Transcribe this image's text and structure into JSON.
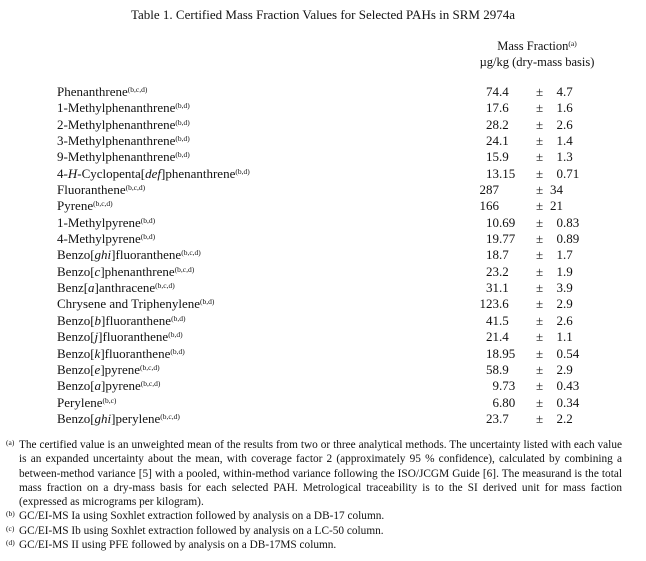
{
  "title": "Table 1.  Certified Mass Fraction Values for Selected PAHs in SRM 2974a",
  "header": {
    "line1": "Mass Fraction",
    "line1_sup": "(a)",
    "line2": "µg/kg (dry-mass basis)"
  },
  "pm_symbol": "±",
  "rows": [
    {
      "name": "Phenanthrene",
      "sup": "(b,c,d)",
      "value": "74.4",
      "unc": "4.7"
    },
    {
      "name": "1-Methylphenanthrene",
      "sup": "(b,d)",
      "value": "17.6",
      "unc": "1.6"
    },
    {
      "name": "2-Methylphenanthrene",
      "sup": "(b,d)",
      "value": "28.2",
      "unc": "2.6"
    },
    {
      "name": "3-Methylphenanthrene",
      "sup": "(b,d)",
      "value": "24.1",
      "unc": "1.4"
    },
    {
      "name": "9-Methylphenanthrene",
      "sup": "(b,d)",
      "value": "15.9",
      "unc": "1.3"
    },
    {
      "name": "4-<i>H</i>-Cyclopenta[<i>def</i>]phenanthrene",
      "sup": "(b,d)",
      "value": "13.15",
      "unc": "0.71"
    },
    {
      "name": "Fluoranthene",
      "sup": "(b,c,d)",
      "value": "287",
      "unc": "34"
    },
    {
      "name": "Pyrene",
      "sup": "(b,c,d)",
      "value": "166",
      "unc": "21"
    },
    {
      "name": "1-Methylpyrene",
      "sup": "(b,d)",
      "value": "10.69",
      "unc": "0.83"
    },
    {
      "name": "4-Methylpyrene",
      "sup": "(b,d)",
      "value": "19.77",
      "unc": "0.89"
    },
    {
      "name": "Benzo[<i>ghi</i>]fluoranthene",
      "sup": "(b,c,d)",
      "value": "18.7",
      "unc": "1.7"
    },
    {
      "name": "Benzo[<i>c</i>]phenanthrene",
      "sup": "(b,c,d)",
      "value": "23.2",
      "unc": "1.9"
    },
    {
      "name": "Benz[<i>a</i>]anthracene",
      "sup": "(b,c,d)",
      "value": "31.1",
      "unc": "3.9"
    },
    {
      "name": "Chrysene and Triphenylene",
      "sup": "(b,d)",
      "value": "123.6",
      "unc": "2.9"
    },
    {
      "name": "Benzo[<i>b</i>]fluoranthene",
      "sup": "(b,d)",
      "value": "41.5",
      "unc": "2.6"
    },
    {
      "name": "Benzo[<i>j</i>]fluoranthene",
      "sup": "(b,d)",
      "value": "21.4",
      "unc": "1.1"
    },
    {
      "name": "Benzo[<i>k</i>]fluoranthene",
      "sup": "(b,d)",
      "value": "18.95",
      "unc": "0.54"
    },
    {
      "name": "Benzo[<i>e</i>]pyrene",
      "sup": "(b,c,d)",
      "value": "58.9",
      "unc": "2.9"
    },
    {
      "name": "Benzo[<i>a</i>]pyrene",
      "sup": "(b,c,d)",
      "value": "9.73",
      "unc": "0.43"
    },
    {
      "name": "Perylene",
      "sup": "(b,c)",
      "value": "6.80",
      "unc": "0.34"
    },
    {
      "name": "Benzo[<i>ghi</i>]perylene",
      "sup": "(b,c,d)",
      "value": "23.7",
      "unc": "2.2"
    }
  ],
  "footnotes": [
    {
      "mark": "(a)",
      "text": "The certified value is an unweighted mean of the results from two or three analytical methods.  The uncertainty listed with each value is an expanded uncertainty about the mean, with coverage factor 2 (approximately 95 % confidence), calculated by combining a between-method variance [5] with a pooled, within-method variance following the ISO/JCGM Guide [6].  The measurand is the total mass fraction on a dry-mass basis for each selected PAH.  Metrological traceability is to the SI derived unit for mass faction (expressed as micrograms per kilogram)."
    },
    {
      "mark": "(b)",
      "text": "GC/EI-MS Ia using Soxhlet extraction followed by analysis on a DB-17 column."
    },
    {
      "mark": "(c)",
      "text": "GC/EI-MS Ib using Soxhlet extraction followed by analysis on a LC-50 column."
    },
    {
      "mark": "(d)",
      "text": "GC/EI-MS II using PFE followed by analysis on a DB-17MS column."
    }
  ]
}
